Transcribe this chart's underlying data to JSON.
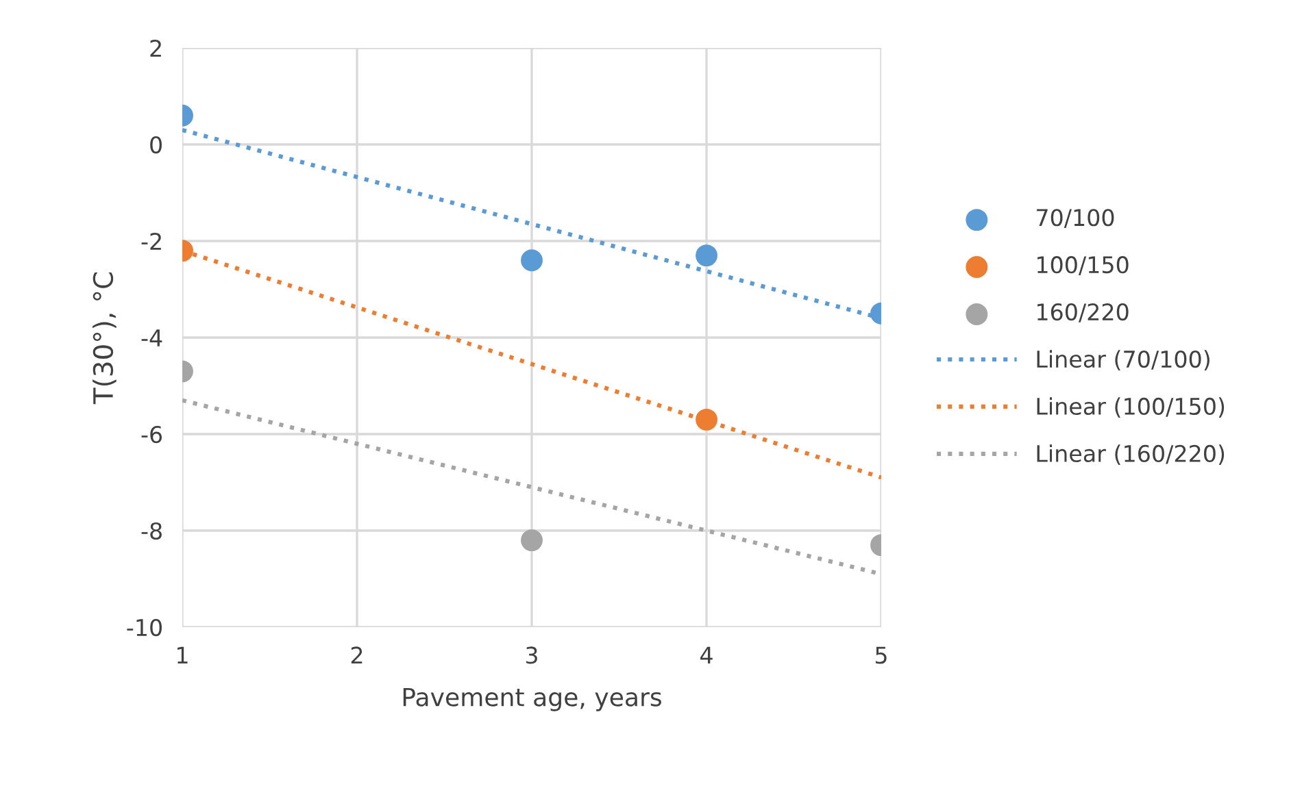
{
  "chart_data": {
    "type": "scatter",
    "xlabel": "Pavement age, years",
    "ylabel": "T(30°), °C",
    "xlim": [
      1,
      5
    ],
    "xticks": [
      1,
      2,
      3,
      4,
      5
    ],
    "ylim": [
      -10,
      2
    ],
    "yticks": [
      -10,
      -8,
      -6,
      -4,
      -2,
      0,
      2
    ],
    "grid": true,
    "legend": "right",
    "marker": "circle",
    "series": [
      {
        "name": "70/100",
        "color": "#5b9bd5",
        "x": [
          1,
          3,
          4,
          5
        ],
        "values": [
          0.6,
          -2.4,
          -2.3,
          -3.5
        ]
      },
      {
        "name": "100/150",
        "color": "#ed7d31",
        "x": [
          1,
          4
        ],
        "values": [
          -2.2,
          -5.7
        ]
      },
      {
        "name": "160/220",
        "color": "#a5a5a5",
        "x": [
          1,
          3,
          5
        ],
        "values": [
          -4.7,
          -8.2,
          -8.3
        ]
      },
      {
        "name": "Linear (70/100)",
        "type": "line",
        "line_style": "dotted",
        "marker": "none",
        "color": "#5b9bd5",
        "x": [
          1,
          5
        ],
        "values": [
          0.3,
          -3.6
        ]
      },
      {
        "name": "Linear (100/150)",
        "type": "line",
        "line_style": "dotted",
        "marker": "none",
        "color": "#ed7d31",
        "x": [
          1,
          5
        ],
        "values": [
          -2.2,
          -6.9
        ]
      },
      {
        "name": "Linear (160/220)",
        "type": "line",
        "line_style": "dotted",
        "marker": "none",
        "color": "#a5a5a5",
        "x": [
          1,
          5
        ],
        "values": [
          -5.3,
          -8.9
        ]
      }
    ]
  }
}
